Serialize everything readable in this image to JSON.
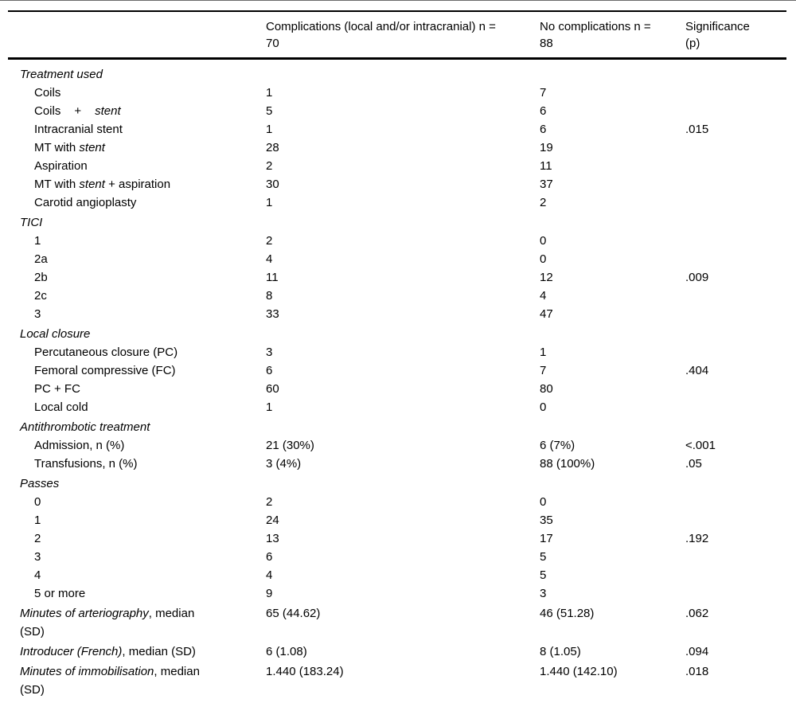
{
  "table": {
    "header": {
      "col2": {
        "line1": "Complications (local and/or intracranial) n =",
        "line2": "70"
      },
      "col3": {
        "line1": "No complications n =",
        "line2": "88"
      },
      "col4": {
        "line1": "Significance",
        "line2": "(p)"
      }
    },
    "rows": [
      {
        "type": "section",
        "label": [
          {
            "t": "Treatment used",
            "i": true
          }
        ],
        "c1": "",
        "c2": "",
        "p": ""
      },
      {
        "type": "item",
        "label": [
          {
            "t": "Coils",
            "i": false
          }
        ],
        "c1": "1",
        "c2": "7",
        "p": ""
      },
      {
        "type": "item",
        "spread": true,
        "label": [
          {
            "t": "Coils",
            "i": false
          },
          {
            "t": "+",
            "i": false
          },
          {
            "t": "stent",
            "i": true
          }
        ],
        "c1": "5",
        "c2": "6",
        "p": ""
      },
      {
        "type": "item",
        "label": [
          {
            "t": "Intracranial stent",
            "i": false
          }
        ],
        "c1": "1",
        "c2": "6",
        "p": ".015"
      },
      {
        "type": "item",
        "label": [
          {
            "t": "MT with ",
            "i": false
          },
          {
            "t": "stent",
            "i": true
          }
        ],
        "c1": "28",
        "c2": "19",
        "p": ""
      },
      {
        "type": "item",
        "label": [
          {
            "t": "Aspiration",
            "i": false
          }
        ],
        "c1": "2",
        "c2": "11",
        "p": ""
      },
      {
        "type": "item",
        "label": [
          {
            "t": "MT with ",
            "i": false
          },
          {
            "t": "stent",
            "i": true
          },
          {
            "t": " + aspiration",
            "i": false
          }
        ],
        "c1": "30",
        "c2": "37",
        "p": ""
      },
      {
        "type": "item",
        "label": [
          {
            "t": "Carotid angioplasty",
            "i": false
          }
        ],
        "c1": "1",
        "c2": "2",
        "p": ""
      },
      {
        "type": "section",
        "label": [
          {
            "t": "TICI",
            "i": true
          }
        ],
        "c1": "",
        "c2": "",
        "p": ""
      },
      {
        "type": "item",
        "label": [
          {
            "t": "1",
            "i": false
          }
        ],
        "c1": "2",
        "c2": "0",
        "p": ""
      },
      {
        "type": "item",
        "label": [
          {
            "t": "2a",
            "i": false
          }
        ],
        "c1": "4",
        "c2": "0",
        "p": ""
      },
      {
        "type": "item",
        "label": [
          {
            "t": "2b",
            "i": false
          }
        ],
        "c1": "11",
        "c2": "12",
        "p": ".009"
      },
      {
        "type": "item",
        "label": [
          {
            "t": "2c",
            "i": false
          }
        ],
        "c1": "8",
        "c2": "4",
        "p": ""
      },
      {
        "type": "item",
        "label": [
          {
            "t": "3",
            "i": false
          }
        ],
        "c1": "33",
        "c2": "47",
        "p": ""
      },
      {
        "type": "section",
        "label": [
          {
            "t": "Local closure",
            "i": true
          }
        ],
        "c1": "",
        "c2": "",
        "p": ""
      },
      {
        "type": "item",
        "label": [
          {
            "t": "Percutaneous closure (PC)",
            "i": false
          }
        ],
        "c1": "3",
        "c2": "1",
        "p": ""
      },
      {
        "type": "item",
        "label": [
          {
            "t": "Femoral compressive (FC)",
            "i": false
          }
        ],
        "c1": "6",
        "c2": "7",
        "p": ".404"
      },
      {
        "type": "item",
        "label": [
          {
            "t": "PC + FC",
            "i": false
          }
        ],
        "c1": "60",
        "c2": "80",
        "p": ""
      },
      {
        "type": "item",
        "label": [
          {
            "t": "Local cold",
            "i": false
          }
        ],
        "c1": "1",
        "c2": "0",
        "p": ""
      },
      {
        "type": "section",
        "label": [
          {
            "t": "Antithrombotic treatment",
            "i": true
          }
        ],
        "c1": "",
        "c2": "",
        "p": ""
      },
      {
        "type": "item",
        "label": [
          {
            "t": "Admission, n (%)",
            "i": false
          }
        ],
        "c1": "21 (30%)",
        "c2": "6 (7%)",
        "p": "<.001"
      },
      {
        "type": "item",
        "label": [
          {
            "t": "Transfusions, n (%)",
            "i": false
          }
        ],
        "c1": "3 (4%)",
        "c2": "88 (100%)",
        "p": ".05"
      },
      {
        "type": "section",
        "label": [
          {
            "t": "Passes",
            "i": true
          }
        ],
        "c1": "",
        "c2": "",
        "p": ""
      },
      {
        "type": "item",
        "label": [
          {
            "t": "0",
            "i": false
          }
        ],
        "c1": "2",
        "c2": "0",
        "p": ""
      },
      {
        "type": "item",
        "label": [
          {
            "t": "1",
            "i": false
          }
        ],
        "c1": "24",
        "c2": "35",
        "p": ""
      },
      {
        "type": "item",
        "label": [
          {
            "t": "2",
            "i": false
          }
        ],
        "c1": "13",
        "c2": "17",
        "p": ".192"
      },
      {
        "type": "item",
        "label": [
          {
            "t": "3",
            "i": false
          }
        ],
        "c1": "6",
        "c2": "5",
        "p": ""
      },
      {
        "type": "item",
        "label": [
          {
            "t": "4",
            "i": false
          }
        ],
        "c1": "4",
        "c2": "5",
        "p": ""
      },
      {
        "type": "item",
        "label": [
          {
            "t": "5 or more",
            "i": false
          }
        ],
        "c1": "9",
        "c2": "3",
        "p": ""
      },
      {
        "type": "stat",
        "label": [
          {
            "t": "Minutes of arteriography",
            "i": true
          },
          {
            "t": ", median",
            "i": false
          },
          {
            "t": "(SD)",
            "i": false,
            "br": true
          }
        ],
        "c1": "65 (44.62)",
        "c2": "46 (51.28)",
        "p": ".062"
      },
      {
        "type": "stat",
        "label": [
          {
            "t": "Introducer (French)",
            "i": true
          },
          {
            "t": ", median (SD)",
            "i": false
          }
        ],
        "c1": "6 (1.08)",
        "c2": "8 (1.05)",
        "p": ".094"
      },
      {
        "type": "stat",
        "label": [
          {
            "t": "Minutes of immobilisation",
            "i": true
          },
          {
            "t": ", median",
            "i": false
          },
          {
            "t": "(SD)",
            "i": false,
            "br": true
          }
        ],
        "c1": "1.440 (183.24)",
        "c2": "1.440 (142.10)",
        "p": ".018"
      }
    ]
  }
}
